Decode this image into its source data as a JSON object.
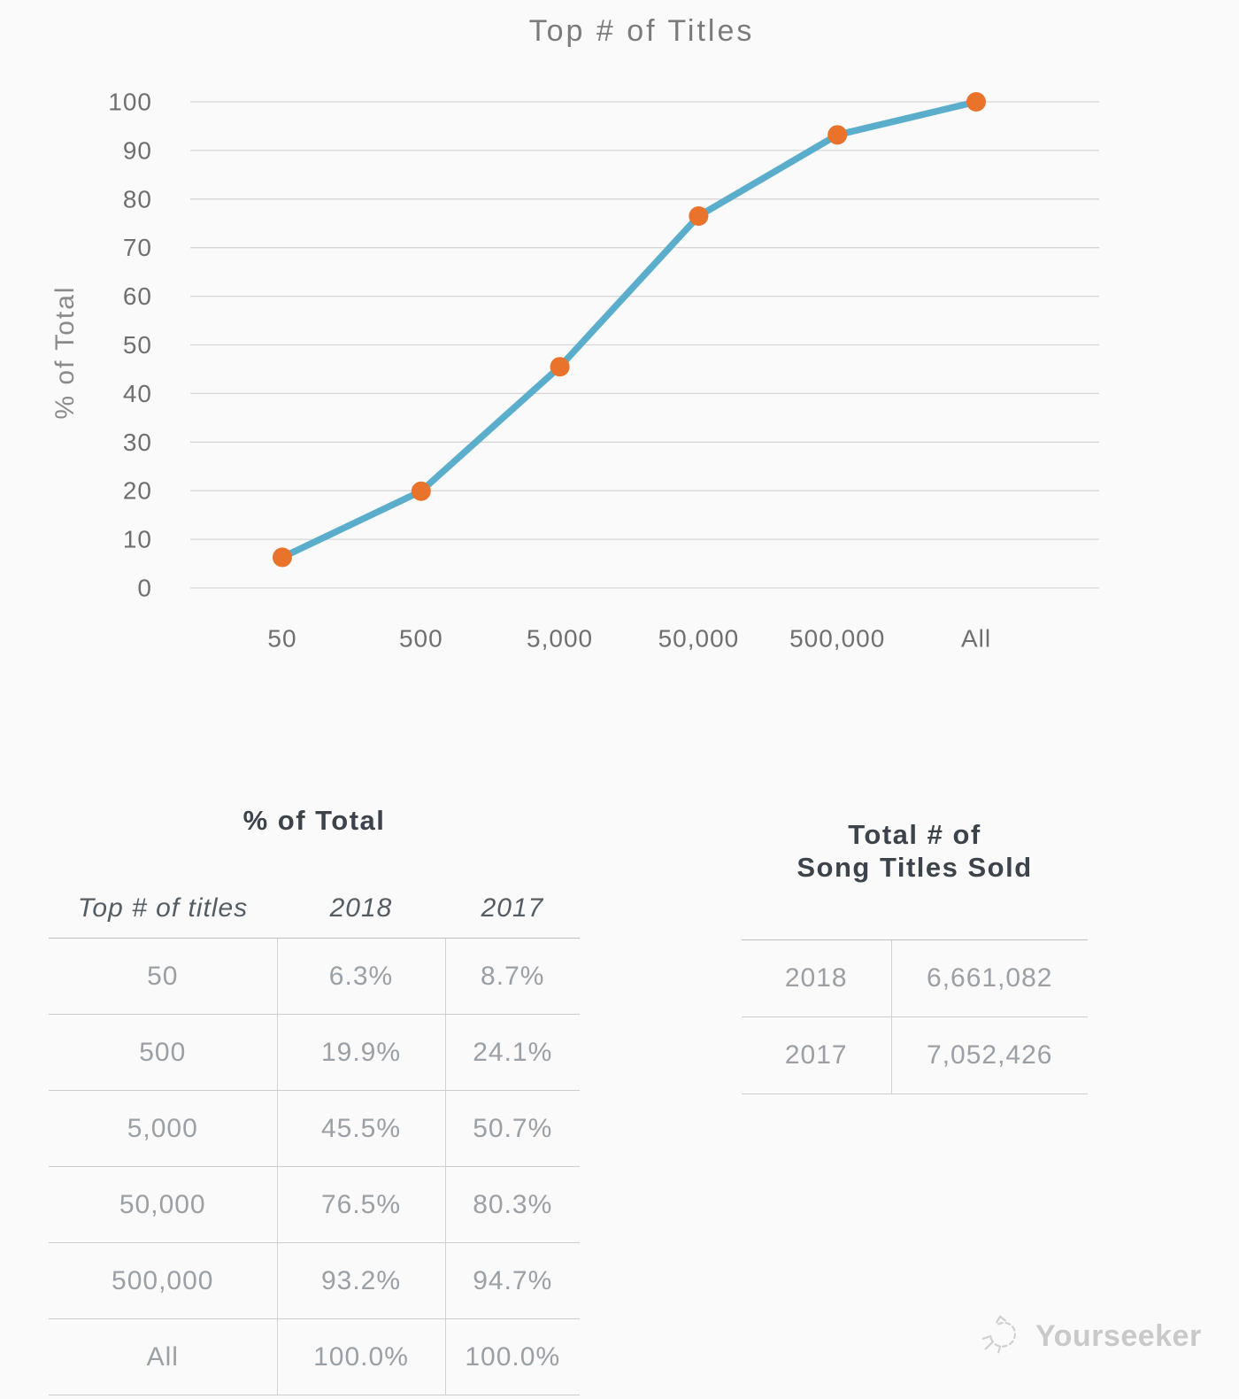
{
  "chart_data": {
    "type": "line",
    "title": "Top # of Titles",
    "ylabel": "% of Total",
    "xlabel": "",
    "categories": [
      "50",
      "500",
      "5,000",
      "50,000",
      "500,000",
      "All"
    ],
    "series": [
      {
        "name": "2018",
        "values": [
          6.3,
          19.9,
          45.5,
          76.5,
          93.2,
          100.0
        ]
      }
    ],
    "ylim": [
      0,
      100
    ],
    "y_ticks": [
      0,
      10,
      20,
      30,
      40,
      50,
      60,
      70,
      80,
      90,
      100
    ],
    "grid": true,
    "legend": "none",
    "line_color": "#5AAECC",
    "marker_color": "#E9732B"
  },
  "pct_table": {
    "title": "% of Total",
    "columns": [
      "Top # of titles",
      "2018",
      "2017"
    ],
    "rows": [
      {
        "titles": "50",
        "y2018": "6.3%",
        "y2017": "8.7%"
      },
      {
        "titles": "500",
        "y2018": "19.9%",
        "y2017": "24.1%"
      },
      {
        "titles": "5,000",
        "y2018": "45.5%",
        "y2017": "50.7%"
      },
      {
        "titles": "50,000",
        "y2018": "76.5%",
        "y2017": "80.3%"
      },
      {
        "titles": "500,000",
        "y2018": "93.2%",
        "y2017": "94.7%"
      },
      {
        "titles": "All",
        "y2018": "100.0%",
        "y2017": "100.0%"
      }
    ]
  },
  "totals_table": {
    "title_line1": "Total # of",
    "title_line2": "Song Titles Sold",
    "rows": [
      {
        "year": "2018",
        "value": "6,661,082"
      },
      {
        "year": "2017",
        "value": "7,052,426"
      }
    ]
  },
  "footer": {
    "brand": "Yourseeker"
  }
}
